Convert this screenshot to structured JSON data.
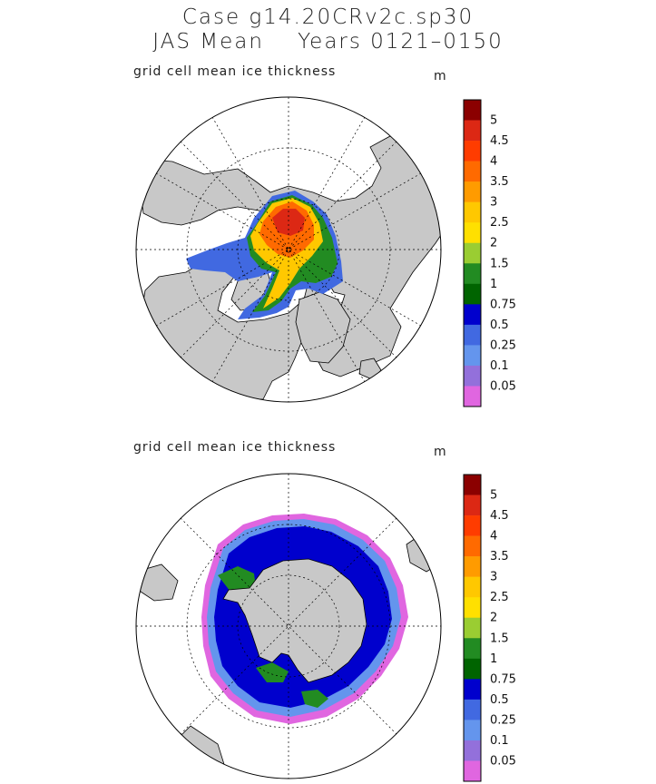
{
  "title_lines": [
    "Case g14.20CRv2c.sp30",
    "JAS Mean    Years 0121–0150"
  ],
  "colors": {
    "ocean": "#ffffff",
    "land": "#c8c8c8",
    "frame": "#000000",
    "grid": "#000000"
  },
  "chart_data": [
    {
      "type": "heatmap",
      "projection": "polar-stereographic",
      "hemisphere": "north",
      "title": "grid cell mean ice thickness",
      "units": "m",
      "colorbar": {
        "levels": [
          "0.05",
          "0.1",
          "0.25",
          "0.5",
          "0.75",
          "1",
          "1.5",
          "2",
          "2.5",
          "3",
          "3.5",
          "4",
          "4.5",
          "5"
        ],
        "colors": [
          "#e066e0",
          "#9370db",
          "#6495ed",
          "#4169e1",
          "#0000cd",
          "#006400",
          "#228b22",
          "#9acd32",
          "#ffe000",
          "#ffc800",
          "#ff9b00",
          "#ff6a00",
          "#ff3c00",
          "#dc2814",
          "#8b0000"
        ]
      },
      "regions": [
        {
          "level_index": 3,
          "name": "arctic-edge-blue"
        },
        {
          "level_index": 6,
          "name": "arctic-green"
        },
        {
          "level_index": 9,
          "name": "arctic-yellow"
        },
        {
          "level_index": 11,
          "name": "arctic-orange"
        },
        {
          "level_index": 13,
          "name": "arctic-red"
        }
      ]
    },
    {
      "type": "heatmap",
      "projection": "polar-stereographic",
      "hemisphere": "south",
      "title": "grid cell mean ice thickness",
      "units": "m",
      "colorbar": {
        "levels": [
          "0.05",
          "0.1",
          "0.25",
          "0.5",
          "0.75",
          "1",
          "1.5",
          "2",
          "2.5",
          "3",
          "3.5",
          "4",
          "4.5",
          "5"
        ],
        "colors": [
          "#e066e0",
          "#9370db",
          "#6495ed",
          "#4169e1",
          "#0000cd",
          "#006400",
          "#228b22",
          "#9acd32",
          "#ffe000",
          "#ffc800",
          "#ff9b00",
          "#ff6a00",
          "#ff3c00",
          "#dc2814",
          "#8b0000"
        ]
      },
      "regions": [
        {
          "level_index": 0,
          "name": "antarctic-outer-pink"
        },
        {
          "level_index": 2,
          "name": "antarctic-lightblue"
        },
        {
          "level_index": 4,
          "name": "antarctic-darkblue"
        },
        {
          "level_index": 6,
          "name": "antarctic-green"
        }
      ]
    }
  ]
}
